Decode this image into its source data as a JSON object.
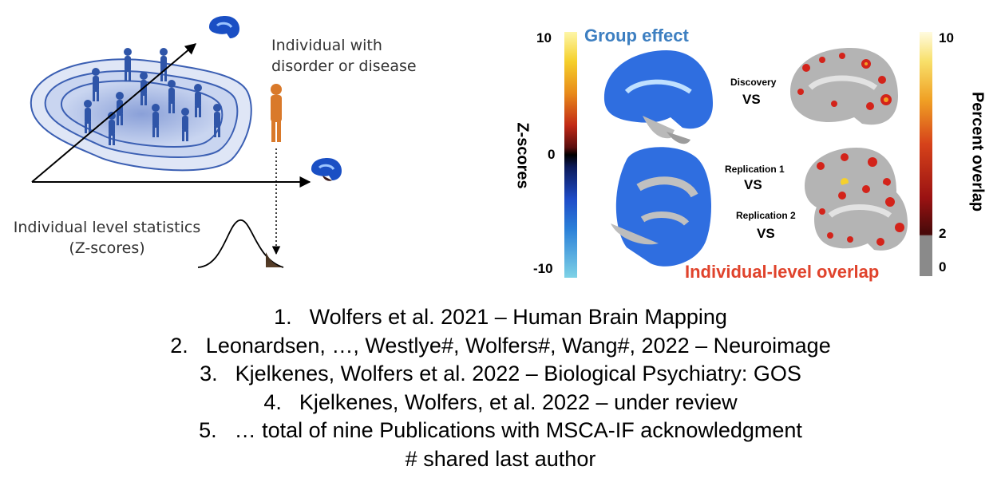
{
  "left_panel": {
    "individual_label_line1": "Individual with",
    "individual_label_line2": "disorder or disease",
    "stats_label_line1": "Individual level statistics",
    "stats_label_line2": "(Z-scores)"
  },
  "right_panel": {
    "group_effect_title": "Group effect",
    "individual_overlap_title": "Individual-level overlap",
    "zscore_axis_label": "Z-scores",
    "zscore_ticks": [
      "10",
      "0",
      "-10"
    ],
    "percent_axis_label": "Percent overlap",
    "percent_ticks": [
      "10",
      "2",
      "0"
    ],
    "comparisons": [
      {
        "name": "Discovery",
        "vs": "VS"
      },
      {
        "name": "Replication 1",
        "vs": "VS"
      },
      {
        "name": "Replication 2",
        "vs": "VS"
      }
    ]
  },
  "references": [
    {
      "num": "1.",
      "text": "Wolfers et al. 2021 – Human Brain Mapping"
    },
    {
      "num": "2.",
      "text": "Leonardsen, …, Westlye#, Wolfers#, Wang#, 2022 – Neuroimage"
    },
    {
      "num": "3.",
      "text": "Kjelkenes, Wolfers et al. 2022 – Biological Psychiatry: GOS"
    },
    {
      "num": "4.",
      "text": "Kjelkenes, Wolfers, et al. 2022 – under review"
    },
    {
      "num": "5.",
      "text": "… total of nine Publications with MSCA-IF acknowledgment"
    }
  ],
  "footnote": "# shared last author",
  "colors": {
    "group_effect_blue": "#3d7fc1",
    "overlap_red": "#e0432c",
    "population_blue": "#2f55a8",
    "individual_orange": "#d9792a"
  }
}
